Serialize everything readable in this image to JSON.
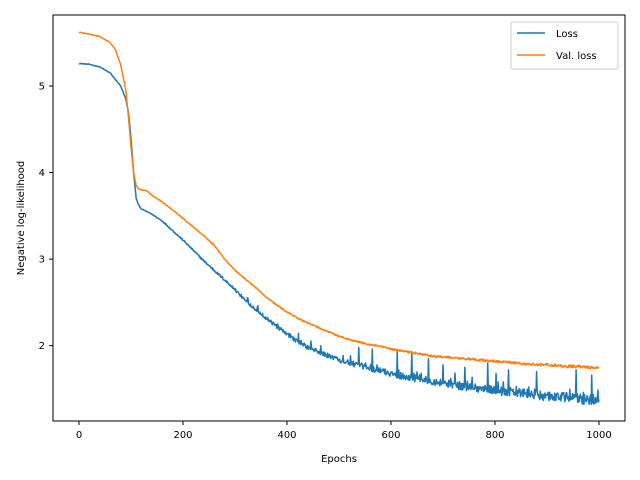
{
  "chart_data": {
    "type": "line",
    "title": "",
    "xlabel": "Epochs",
    "ylabel": "Negative log-likelihood",
    "xlim": [
      -50,
      1050
    ],
    "ylim": [
      1.13,
      5.82
    ],
    "xticks": [
      0,
      200,
      400,
      600,
      800,
      1000
    ],
    "xtick_labels": [
      "0",
      "200",
      "400",
      "600",
      "800",
      "1000"
    ],
    "yticks": [
      2,
      3,
      4,
      5
    ],
    "ytick_labels": [
      "2",
      "3",
      "4",
      "5"
    ],
    "legend_position": "top-right",
    "grid": false,
    "colors": {
      "loss": "#1f77b4",
      "val_loss": "#ff7f0e"
    },
    "series": [
      {
        "name": "Loss",
        "key": "loss",
        "x": [
          0,
          20,
          40,
          60,
          80,
          90,
          95,
          100,
          105,
          110,
          115,
          120,
          140,
          160,
          180,
          200,
          220,
          240,
          260,
          280,
          300,
          320,
          340,
          360,
          380,
          400,
          420,
          440,
          460,
          480,
          500,
          520,
          540,
          560,
          580,
          600,
          620,
          640,
          660,
          680,
          700,
          720,
          740,
          760,
          780,
          800,
          820,
          840,
          860,
          880,
          900,
          920,
          940,
          960,
          980,
          1000
        ],
        "values": [
          5.26,
          5.25,
          5.22,
          5.15,
          5.0,
          4.85,
          4.7,
          4.4,
          4.0,
          3.7,
          3.62,
          3.58,
          3.52,
          3.44,
          3.33,
          3.22,
          3.1,
          2.98,
          2.87,
          2.76,
          2.65,
          2.52,
          2.42,
          2.32,
          2.22,
          2.13,
          2.05,
          1.98,
          1.93,
          1.88,
          1.84,
          1.8,
          1.77,
          1.74,
          1.71,
          1.68,
          1.65,
          1.63,
          1.61,
          1.59,
          1.57,
          1.55,
          1.53,
          1.52,
          1.5,
          1.49,
          1.47,
          1.46,
          1.45,
          1.43,
          1.42,
          1.41,
          1.4,
          1.39,
          1.38,
          1.37
        ],
        "spikes": [
          [
            346,
            2.38
          ],
          [
            382,
            2.25
          ],
          [
            465,
            2.0
          ],
          [
            538,
            1.98
          ],
          [
            564,
            1.96
          ],
          [
            612,
            1.94
          ],
          [
            640,
            1.93
          ],
          [
            672,
            1.85
          ],
          [
            700,
            1.78
          ],
          [
            742,
            1.75
          ],
          [
            786,
            1.8
          ],
          [
            802,
            1.68
          ],
          [
            826,
            1.72
          ],
          [
            880,
            1.7
          ],
          [
            956,
            1.72
          ],
          [
            986,
            1.66
          ]
        ]
      },
      {
        "name": "Val. loss",
        "key": "val_loss",
        "x": [
          0,
          20,
          40,
          60,
          70,
          80,
          90,
          95,
          100,
          105,
          110,
          115,
          120,
          130,
          140,
          160,
          180,
          200,
          220,
          240,
          260,
          280,
          300,
          320,
          340,
          360,
          380,
          400,
          420,
          440,
          460,
          480,
          500,
          520,
          540,
          560,
          580,
          600,
          620,
          640,
          660,
          680,
          700,
          720,
          740,
          760,
          780,
          800,
          820,
          840,
          860,
          880,
          900,
          920,
          940,
          960,
          980,
          1000
        ],
        "values": [
          5.62,
          5.6,
          5.57,
          5.5,
          5.42,
          5.25,
          4.95,
          4.65,
          4.3,
          4.0,
          3.85,
          3.81,
          3.8,
          3.79,
          3.74,
          3.66,
          3.57,
          3.47,
          3.37,
          3.27,
          3.16,
          3.0,
          2.87,
          2.77,
          2.67,
          2.56,
          2.47,
          2.39,
          2.32,
          2.26,
          2.21,
          2.16,
          2.11,
          2.07,
          2.04,
          2.01,
          1.99,
          1.96,
          1.94,
          1.92,
          1.9,
          1.88,
          1.87,
          1.86,
          1.85,
          1.84,
          1.83,
          1.82,
          1.81,
          1.8,
          1.79,
          1.78,
          1.78,
          1.77,
          1.76,
          1.76,
          1.75,
          1.74
        ],
        "spikes": []
      }
    ]
  }
}
